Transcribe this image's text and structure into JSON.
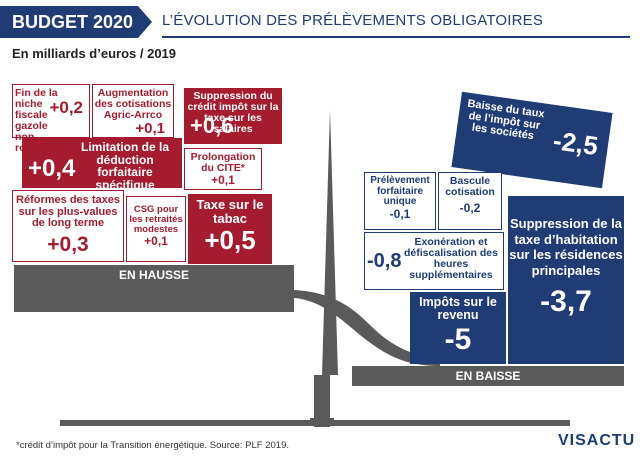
{
  "header": {
    "brand": "BUDGET 2020",
    "title": "L’ÉVOLUTION DES PRÉLÈVEMENTS OBLIGATOIRES"
  },
  "subtitle": "En milliards d’euros / 2019",
  "hausse": {
    "band_label": "EN HAUSSE",
    "items": [
      {
        "label": "Fin de la niche fiscale gazole non routier",
        "value": "+0,2"
      },
      {
        "label": "Augmentation des cotisations Agric-Arrco",
        "value": "+0,1"
      },
      {
        "label": "Suppression du crédit impôt sur la taxe sur les salaires",
        "value": "+0,6"
      },
      {
        "label": "Limitation de la déduction forfaitaire spécifique",
        "value": "+0,4"
      },
      {
        "label": "Prolongation du CITE*",
        "value": "+0,1"
      },
      {
        "label": "Réformes des taxes sur les plus-values de long terme",
        "value": "+0,3"
      },
      {
        "label": "CSG pour les retraités modestes",
        "value": "+0,1"
      },
      {
        "label": "Taxe sur le tabac",
        "value": "+0,5"
      }
    ]
  },
  "baisse": {
    "band_label": "EN BAISSE",
    "items": [
      {
        "label": "Baisse du taux de l’impôt sur les sociétés",
        "value": "-2,5"
      },
      {
        "label": "Prélèvement forfaitaire unique",
        "value": "-0,1"
      },
      {
        "label": "Bascule cotisation",
        "value": "-0,2"
      },
      {
        "label": "Exonération et défiscalisation des heures supplémentaires",
        "value": "-0,8"
      },
      {
        "label": "Impôts sur le revenu",
        "value": "-5"
      },
      {
        "label": "Suppression de la taxe d’habitation sur les résidences principales",
        "value": "-3,7"
      }
    ]
  },
  "footnote": "*crédit d’impôt pour la Transition énergétique. Source: PLF 2019.",
  "logo": "VISACTU",
  "colors": {
    "red": "#a51c2f",
    "navy": "#1f3c74",
    "grey": "#5a5a5a"
  }
}
